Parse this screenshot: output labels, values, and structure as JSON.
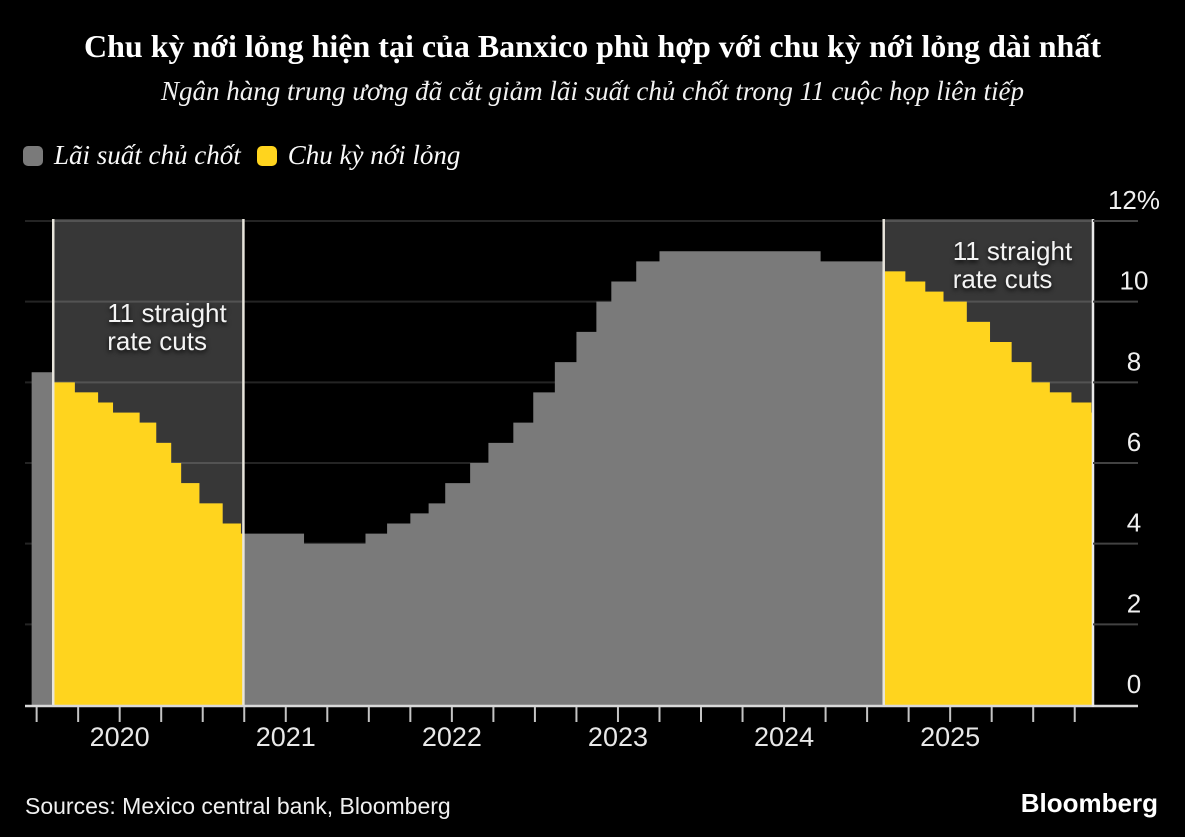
{
  "header": {
    "title": "Chu kỳ nới lỏng hiện tại của Banxico phù hợp với chu kỳ nới lỏng dài nhất",
    "subtitle": "Ngân hàng trung ương đã cắt giảm lãi suất chủ chốt trong 11 cuộc họp liên tiếp"
  },
  "legend": {
    "items": [
      {
        "label": "Lãi suất chủ chốt",
        "color": "#7a7a7a"
      },
      {
        "label": "Chu kỳ nới lỏng",
        "color": "#ffd41e"
      }
    ]
  },
  "footer": {
    "sources": "Sources: Mexico central bank, Bloomberg",
    "brand": "Bloomberg"
  },
  "chart_data": {
    "type": "area",
    "subtype": "step",
    "unit": "%",
    "series": [
      {
        "name": "Lãi suất chủ chốt",
        "color": "#7a7a7a",
        "steps": [
          [
            2019.47,
            8.25
          ],
          [
            2019.6,
            8.0
          ],
          [
            2019.73,
            7.75
          ],
          [
            2019.87,
            7.5
          ],
          [
            2019.96,
            7.25
          ],
          [
            2020.12,
            7.0
          ],
          [
            2020.22,
            6.5
          ],
          [
            2020.31,
            6.0
          ],
          [
            2020.37,
            5.5
          ],
          [
            2020.48,
            5.0
          ],
          [
            2020.62,
            4.5
          ],
          [
            2020.73,
            4.25
          ],
          [
            2021.11,
            4.0
          ],
          [
            2021.48,
            4.25
          ],
          [
            2021.61,
            4.5
          ],
          [
            2021.75,
            4.75
          ],
          [
            2021.86,
            5.0
          ],
          [
            2021.96,
            5.5
          ],
          [
            2022.11,
            6.0
          ],
          [
            2022.22,
            6.5
          ],
          [
            2022.37,
            7.0
          ],
          [
            2022.49,
            7.75
          ],
          [
            2022.62,
            8.5
          ],
          [
            2022.75,
            9.25
          ],
          [
            2022.87,
            10.0
          ],
          [
            2022.96,
            10.5
          ],
          [
            2023.11,
            11.0
          ],
          [
            2023.25,
            11.25
          ],
          [
            2024.22,
            11.0
          ],
          [
            2024.6,
            10.75
          ],
          [
            2024.73,
            10.5
          ],
          [
            2024.85,
            10.25
          ],
          [
            2024.96,
            10.0
          ],
          [
            2025.1,
            9.5
          ],
          [
            2025.24,
            9.0
          ],
          [
            2025.37,
            8.5
          ],
          [
            2025.49,
            8.0
          ],
          [
            2025.6,
            7.75
          ],
          [
            2025.73,
            7.5
          ],
          [
            2025.85,
            7.25
          ]
        ]
      }
    ],
    "easing_cycles": [
      {
        "name": "Chu kỳ nới lỏng",
        "start": 2019.6,
        "end": 2020.745,
        "cuts": 11,
        "annotation_lines": [
          "11 straight",
          "rate cuts"
        ]
      },
      {
        "name": "Chu kỳ nới lỏng",
        "start": 2024.6,
        "end": 2025.86,
        "cuts": 11,
        "annotation_lines": [
          "11 straight",
          "rate cuts"
        ]
      }
    ],
    "y_axis": {
      "side": "right",
      "min": 0,
      "max": 12,
      "grid": true,
      "ticks": [
        0,
        2,
        4,
        6,
        8,
        10,
        12
      ],
      "tick_labels": [
        "0",
        "2",
        "4",
        "6",
        "8",
        "10",
        "12%"
      ]
    },
    "x_axis": {
      "domain": [
        2019.43,
        2025.86
      ],
      "minor_tick_step": 0.25,
      "year_values": [
        2020,
        2021,
        2022,
        2023,
        2024,
        2025
      ],
      "year_labels": [
        "2020",
        "2021",
        "2022",
        "2023",
        "2024",
        "2025"
      ]
    },
    "colors": {
      "background": "#000000",
      "rate_area": "#7a7a7a",
      "easing_area": "#ffd41e",
      "band_background": "#373737",
      "band_edge": "#e8e5dc",
      "axis": "#eaeaea",
      "baseline": "#d9d9d9",
      "gridline": "rgba(255,255,255,0.14)",
      "y_tick": "#424242",
      "x_tick": "#c4c4c4",
      "labels": "#f0f0f0",
      "annotation": "#f4f4f4"
    }
  }
}
